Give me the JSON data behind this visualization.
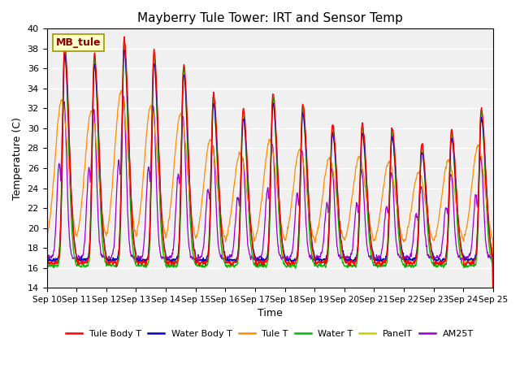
{
  "title": "Mayberry Tule Tower: IRT and Sensor Temp",
  "xlabel": "Time",
  "ylabel": "Temperature (C)",
  "ylim": [
    14,
    40
  ],
  "xlim": [
    0,
    15
  ],
  "xtick_labels": [
    "Sep 10",
    "Sep 11",
    "Sep 12",
    "Sep 13",
    "Sep 14",
    "Sep 15",
    "Sep 16",
    "Sep 17",
    "Sep 18",
    "Sep 19",
    "Sep 20",
    "Sep 21",
    "Sep 22",
    "Sep 23",
    "Sep 24",
    "Sep 25"
  ],
  "station_label": "MB_tule",
  "bg_color": "#f0f0f0",
  "lines": {
    "Tule Body T": {
      "color": "#ff0000"
    },
    "Water Body T": {
      "color": "#0000cc"
    },
    "Tule T": {
      "color": "#ff8c00"
    },
    "Water T": {
      "color": "#00bb00"
    },
    "PanelT": {
      "color": "#cccc00"
    },
    "AM25T": {
      "color": "#9900cc"
    }
  },
  "legend_order": [
    "Tule Body T",
    "Water Body T",
    "Tule T",
    "Water T",
    "PanelT",
    "AM25T"
  ],
  "day_peaks": [
    38.5,
    37.5,
    39.0,
    37.8,
    36.5,
    33.5,
    32.0,
    33.5,
    32.5,
    30.5,
    30.5,
    30.0,
    28.5,
    30.0,
    32.0
  ],
  "night_base": 16.5
}
